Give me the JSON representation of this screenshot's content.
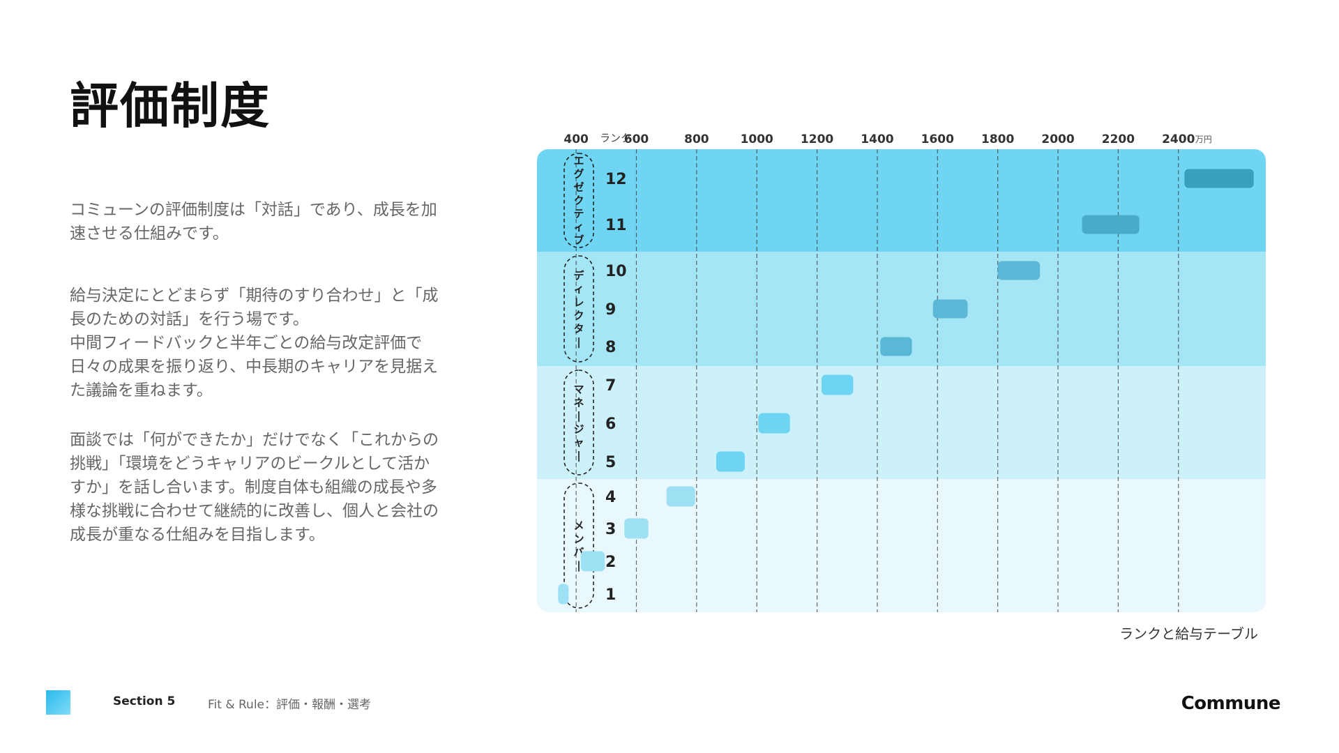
{
  "title": "評価制度",
  "paragraphs": [
    "コミューンの評価制度は「対話」であり、成長を加\n速させる仕組みです。",
    "給与決定にとどまらず「期待のすり合わせ」と「成\n長のための対話」を行う場です。\n中間フィードバックと半年ごとの給与改定評価で\n日々の成果を振り返り、中長期のキャリアを見据え\nた議論を重ねます。",
    "面談では「何ができたか」だけでなく「これからの\n挑戦」「環境をどうキャリアのビークルとして活か\nすか」を話し合います。制度自体も組織の成長や多\n様な挑戦に合わせて継続的に改善し、個人と会社の\n成長が重なる仕組みを目指します。"
  ],
  "chart_data": {
    "type": "bar",
    "title": "",
    "caption": "ランクと給与テーブル",
    "rank_axis_label": "ランク",
    "x_unit": "万円",
    "x_ticks": [
      400,
      600,
      800,
      1000,
      1200,
      1400,
      1600,
      1800,
      2000,
      2200,
      2400
    ],
    "xlim": [
      270,
      2690
    ],
    "groups": [
      {
        "name": "エグゼクティブ",
        "ranks": [
          12,
          11
        ],
        "color": "#6fd5f2"
      },
      {
        "name": "ディレクター",
        "ranks": [
          10,
          9,
          8
        ],
        "color": "#a4e5f6"
      },
      {
        "name": "マネージャー",
        "ranks": [
          7,
          6,
          5
        ],
        "color": "#cdf1fb"
      },
      {
        "name": "メンバー",
        "ranks": [
          4,
          3,
          2,
          1
        ],
        "color": "#e9f8fd"
      }
    ],
    "ranges": [
      {
        "rank": 12,
        "min": 2420,
        "max": 2650,
        "color": "#3a9fbd"
      },
      {
        "rank": 11,
        "min": 2080,
        "max": 2270,
        "color": "#4aabc8"
      },
      {
        "rank": 10,
        "min": 1800,
        "max": 1940,
        "color": "#5ab8d6"
      },
      {
        "rank": 9,
        "min": 1585,
        "max": 1700,
        "color": "#5ab8d6"
      },
      {
        "rank": 8,
        "min": 1410,
        "max": 1515,
        "color": "#5ab8d6"
      },
      {
        "rank": 7,
        "min": 1215,
        "max": 1320,
        "color": "#6dd4f1"
      },
      {
        "rank": 6,
        "min": 1005,
        "max": 1110,
        "color": "#6dd4f1"
      },
      {
        "rank": 5,
        "min": 865,
        "max": 960,
        "color": "#6dd4f1"
      },
      {
        "rank": 4,
        "min": 700,
        "max": 795,
        "color": "#9ee0f4"
      },
      {
        "rank": 3,
        "min": 560,
        "max": 640,
        "color": "#9ee0f4"
      },
      {
        "rank": 2,
        "min": 415,
        "max": 495,
        "color": "#9ee0f4"
      },
      {
        "rank": 1,
        "min": 340,
        "max": 375,
        "color": "#9ee0f4"
      }
    ]
  },
  "footer": {
    "section": "Section 5",
    "subtitle": "Fit & Rule：評価・報酬・選考",
    "logo": "Commune"
  },
  "colors": {
    "accent": "#2ab9ea",
    "grid": "#3a3a3a"
  }
}
